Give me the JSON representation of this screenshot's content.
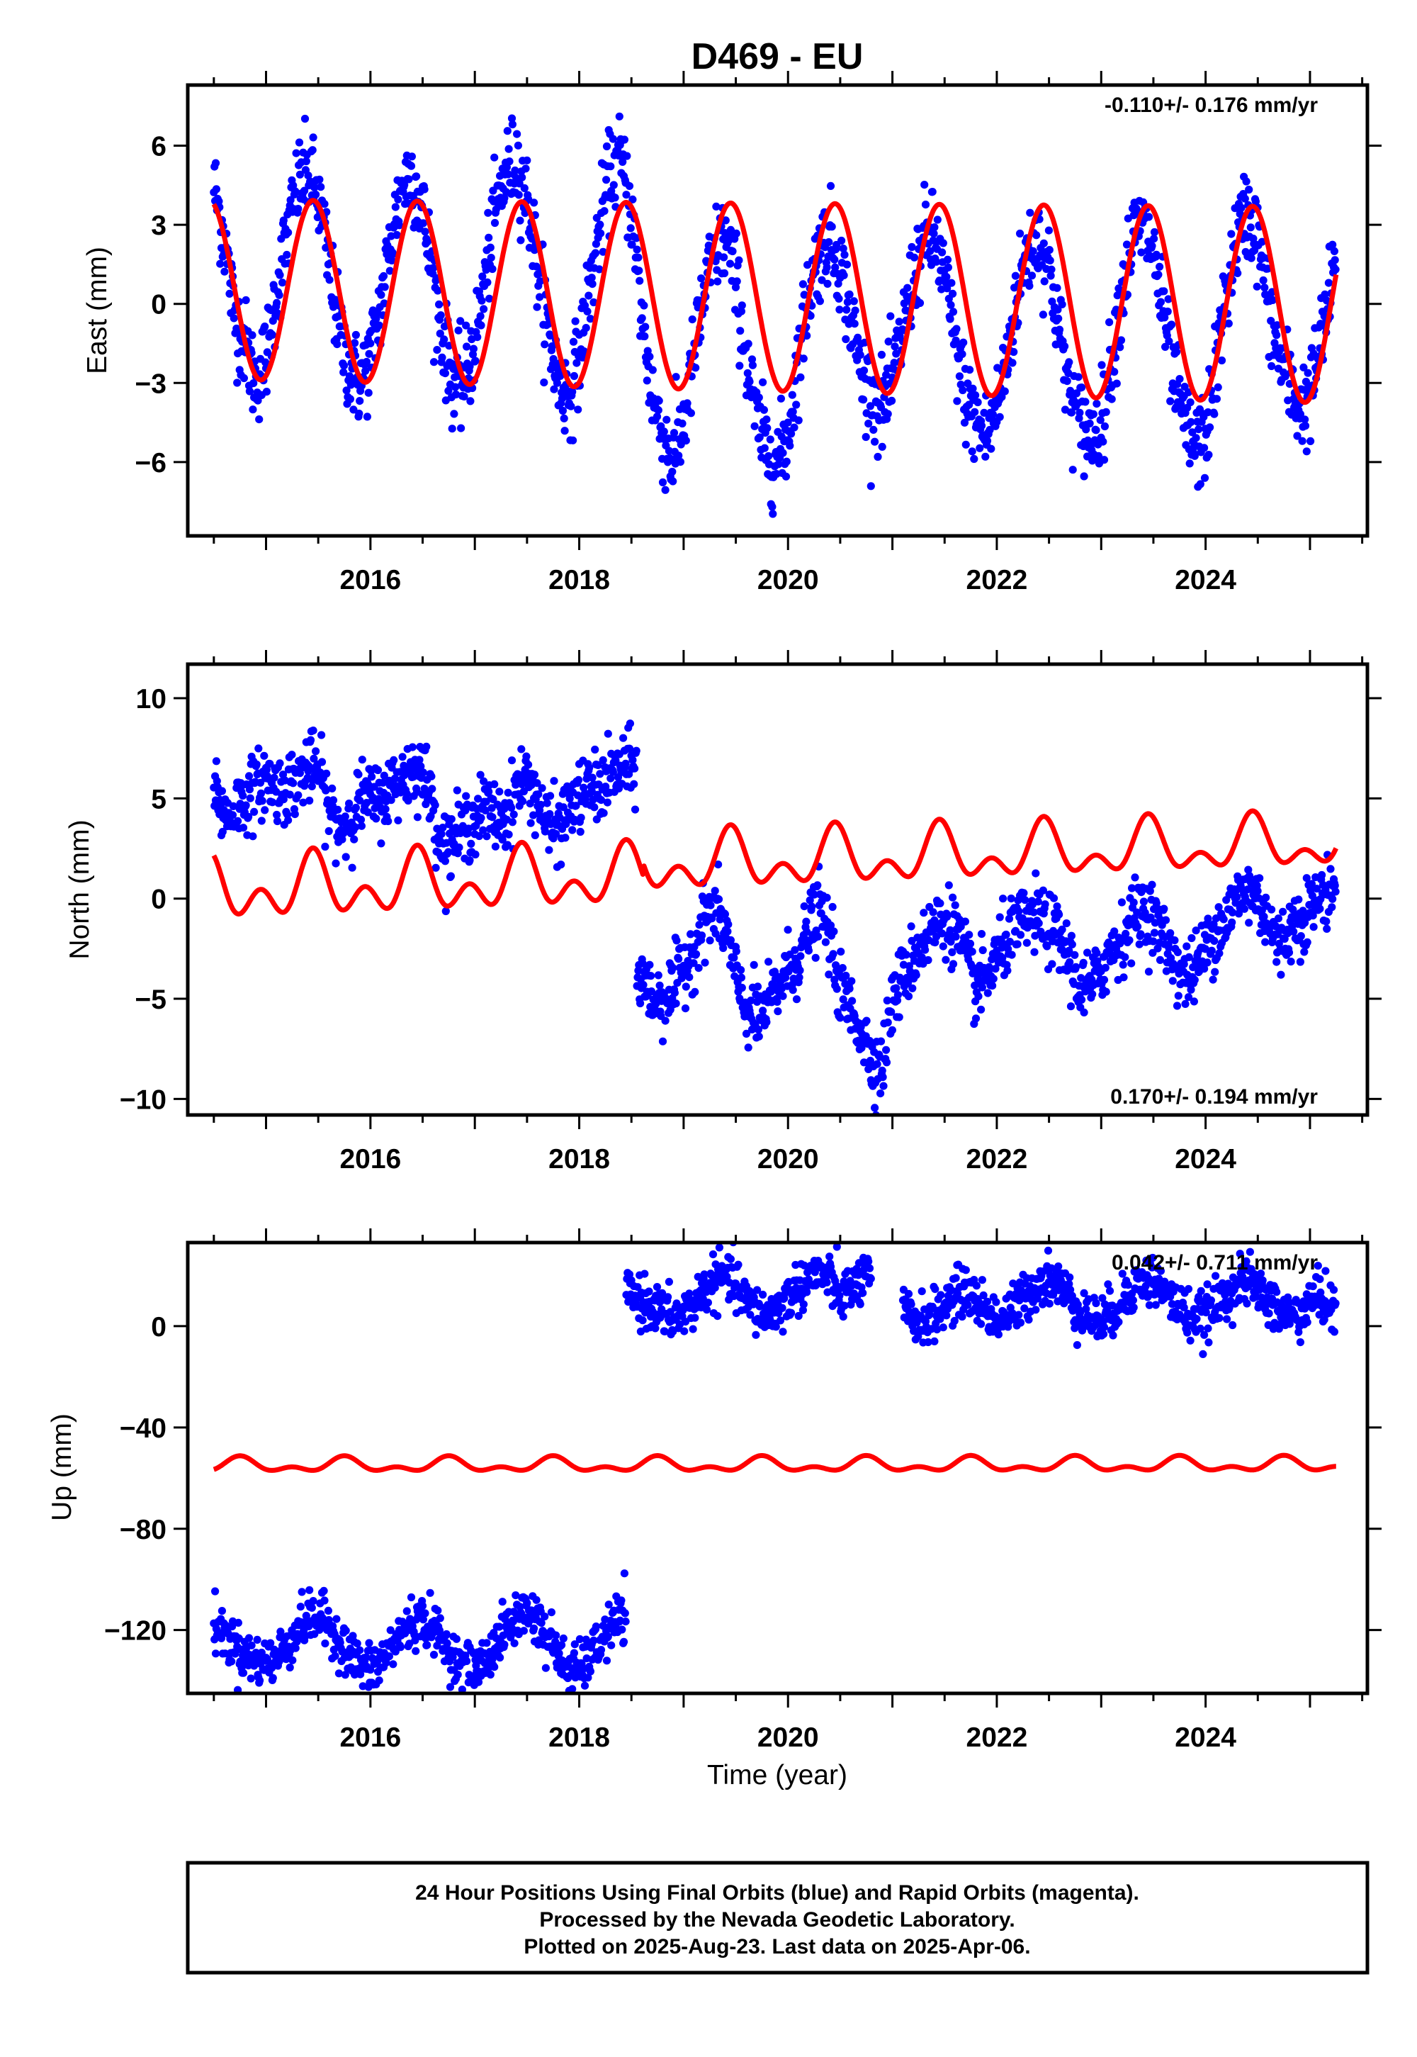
{
  "title": "D469 - EU",
  "footer": {
    "line1": "24 Hour Positions Using Final Orbits (blue) and Rapid Orbits (magenta).",
    "line2": "Processed by the Nevada Geodetic Laboratory.",
    "line3": "Plotted on 2025-Aug-23. Last data on 2025-Apr-06."
  },
  "colors": {
    "data": "#0000ff",
    "fit": "#ff0000"
  },
  "chart_data": [
    {
      "type": "scatter",
      "ylabel": "East (mm)",
      "xlabel": "",
      "rate": "-0.110+/- 0.176 mm/yr",
      "xlim": [
        2014.25,
        2025.55
      ],
      "ylim": [
        -8.8,
        8.3
      ],
      "xticks": [
        2016,
        2018,
        2020,
        2022,
        2024
      ],
      "xtick_labels": [
        "2016",
        "2018",
        "2020",
        "2022",
        "2024"
      ],
      "yticks": [
        -6,
        -3,
        0,
        3,
        6
      ],
      "ytick_labels": [
        "−6",
        "−3",
        "0",
        "3",
        "6"
      ],
      "legend": "none",
      "series": [
        {
          "role": "observations",
          "x": [
            2014.5,
            2014.6,
            2014.7,
            2014.8,
            2014.9,
            2015.0,
            2015.1,
            2015.2,
            2015.3,
            2015.4,
            2015.5,
            2015.6,
            2015.7,
            2015.8,
            2015.9,
            2016.0,
            2016.1,
            2016.2,
            2016.3,
            2016.4,
            2016.5,
            2016.6,
            2016.7,
            2016.8,
            2016.9,
            2017.0,
            2017.1,
            2017.2,
            2017.3,
            2017.4,
            2017.5,
            2017.6,
            2017.7,
            2017.8,
            2017.9,
            2018.0,
            2018.1,
            2018.2,
            2018.3,
            2018.4,
            2018.5,
            2018.6,
            2018.7,
            2018.8,
            2018.9,
            2019.0,
            2019.1,
            2019.2,
            2019.3,
            2019.4,
            2019.5,
            2019.6,
            2019.7,
            2019.8,
            2019.9,
            2020.0,
            2020.1,
            2020.2,
            2020.3,
            2020.4,
            2020.5,
            2020.6,
            2020.7,
            2020.8,
            2020.9,
            2021.0,
            2021.1,
            2021.2,
            2021.3,
            2021.4,
            2021.5,
            2021.6,
            2021.7,
            2021.8,
            2021.9,
            2022.0,
            2022.1,
            2022.2,
            2022.3,
            2022.4,
            2022.5,
            2022.6,
            2022.7,
            2022.8,
            2022.9,
            2023.0,
            2023.1,
            2023.2,
            2023.3,
            2023.4,
            2023.5,
            2023.6,
            2023.7,
            2023.8,
            2023.9,
            2024.0,
            2024.1,
            2024.2,
            2024.3,
            2024.4,
            2024.5,
            2024.6,
            2024.7,
            2024.8,
            2024.9,
            2025.0,
            2025.1,
            2025.2,
            2025.25
          ],
          "y": [
            4.5,
            2.5,
            -0.5,
            -1.5,
            -3.0,
            -2.0,
            0.5,
            2.5,
            4.5,
            5.0,
            4.0,
            1.5,
            -1.0,
            -2.5,
            -3.0,
            -2.0,
            0.0,
            2.5,
            4.5,
            5.0,
            3.5,
            1.0,
            -1.5,
            -3.0,
            -3.0,
            -1.5,
            1.0,
            3.5,
            5.0,
            5.5,
            4.0,
            1.5,
            -1.0,
            -3.0,
            -3.5,
            -2.0,
            0.5,
            3.0,
            5.0,
            5.5,
            3.5,
            -0.5,
            -3.5,
            -5.0,
            -6.0,
            -4.5,
            -2.0,
            0.5,
            2.0,
            2.5,
            1.0,
            -2.0,
            -4.5,
            -5.5,
            -6.0,
            -5.0,
            -2.0,
            0.5,
            2.0,
            2.5,
            1.5,
            -0.5,
            -2.5,
            -3.5,
            -4.0,
            -3.0,
            -1.0,
            1.0,
            2.5,
            2.5,
            1.0,
            -1.5,
            -3.5,
            -4.5,
            -5.0,
            -4.0,
            -2.0,
            0.5,
            2.0,
            2.5,
            1.5,
            -1.0,
            -3.5,
            -4.5,
            -5.0,
            -4.5,
            -2.0,
            0.5,
            2.5,
            3.0,
            2.0,
            -0.5,
            -3.0,
            -4.5,
            -5.5,
            -5.0,
            -2.5,
            0.5,
            2.5,
            3.5,
            2.5,
            0.0,
            -2.0,
            -3.0,
            -4.0,
            -3.5,
            -1.5,
            0.5,
            1.5
          ]
        },
        {
          "role": "model-fit",
          "model": "sinusoid",
          "x_start": 2014.5,
          "x_end": 2025.25,
          "offset": 0.5,
          "trend_per_year": -0.11,
          "amplitude": [
            3.5,
            3.6,
            3.7
          ],
          "amplitude_years": [
            2014.5,
            2019.5,
            2025.25
          ],
          "peak_year_fraction": 0.45,
          "peak_values": [
            4.0,
            3.9,
            3.3
          ],
          "trough_values": [
            -2.8,
            -3.2,
            -3.8
          ]
        }
      ]
    },
    {
      "type": "scatter",
      "ylabel": "North (mm)",
      "xlabel": "",
      "rate": "0.170+/- 0.194 mm/yr",
      "xlim": [
        2014.25,
        2025.55
      ],
      "ylim": [
        -10.8,
        11.7
      ],
      "xticks": [
        2016,
        2018,
        2020,
        2022,
        2024
      ],
      "xtick_labels": [
        "2016",
        "2018",
        "2020",
        "2022",
        "2024"
      ],
      "yticks": [
        -10,
        -5,
        0,
        5,
        10
      ],
      "ytick_labels": [
        "−10",
        "−5",
        "0",
        "5",
        "10"
      ],
      "legend": "none",
      "series": [
        {
          "role": "observations",
          "x": [
            2014.5,
            2014.6,
            2014.7,
            2014.8,
            2014.9,
            2015.0,
            2015.1,
            2015.2,
            2015.3,
            2015.4,
            2015.5,
            2015.6,
            2015.7,
            2015.8,
            2015.9,
            2016.0,
            2016.1,
            2016.2,
            2016.3,
            2016.4,
            2016.5,
            2016.6,
            2016.7,
            2016.8,
            2016.9,
            2017.0,
            2017.1,
            2017.2,
            2017.3,
            2017.4,
            2017.5,
            2017.6,
            2017.7,
            2017.8,
            2017.9,
            2018.0,
            2018.1,
            2018.2,
            2018.3,
            2018.4,
            2018.5,
            2018.6,
            2018.7,
            2018.8,
            2018.9,
            2019.0,
            2019.1,
            2019.2,
            2019.3,
            2019.4,
            2019.5,
            2019.6,
            2019.7,
            2019.8,
            2019.9,
            2020.0,
            2020.1,
            2020.2,
            2020.3,
            2020.4,
            2020.5,
            2020.6,
            2020.7,
            2020.8,
            2020.9,
            2021.0,
            2021.1,
            2021.2,
            2021.3,
            2021.4,
            2021.5,
            2021.6,
            2021.7,
            2021.8,
            2021.9,
            2022.0,
            2022.1,
            2022.2,
            2022.3,
            2022.4,
            2022.5,
            2022.6,
            2022.7,
            2022.8,
            2022.9,
            2023.0,
            2023.1,
            2023.2,
            2023.3,
            2023.4,
            2023.5,
            2023.6,
            2023.7,
            2023.8,
            2023.9,
            2024.0,
            2024.1,
            2024.2,
            2024.3,
            2024.4,
            2024.5,
            2024.6,
            2024.7,
            2024.8,
            2024.9,
            2025.0,
            2025.1,
            2025.2,
            2025.25
          ],
          "y": [
            6.0,
            4.0,
            4.5,
            5.0,
            5.5,
            6.0,
            5.5,
            5.5,
            6.0,
            6.5,
            6.5,
            4.5,
            3.5,
            4.0,
            5.0,
            5.0,
            5.0,
            5.5,
            6.0,
            6.5,
            6.5,
            4.5,
            2.5,
            3.0,
            3.5,
            4.0,
            4.5,
            4.0,
            4.0,
            5.5,
            6.0,
            5.0,
            3.5,
            3.5,
            4.5,
            5.0,
            5.5,
            5.5,
            6.0,
            6.5,
            6.5,
            -4.0,
            -5.0,
            -5.0,
            -4.5,
            -3.5,
            -2.5,
            -1.0,
            -0.5,
            -1.5,
            -4.0,
            -5.5,
            -6.0,
            -5.5,
            -4.5,
            -3.5,
            -3.0,
            -1.5,
            -0.5,
            -2.0,
            -4.5,
            -5.5,
            -6.5,
            -8.0,
            -8.5,
            -5.0,
            -4.0,
            -3.0,
            -2.0,
            -1.5,
            -1.0,
            -1.5,
            -3.0,
            -4.5,
            -4.0,
            -3.0,
            -2.0,
            -1.5,
            -1.0,
            -1.0,
            -1.5,
            -2.0,
            -3.0,
            -4.5,
            -4.5,
            -3.5,
            -2.5,
            -2.0,
            -1.0,
            -0.5,
            -1.0,
            -2.0,
            -3.0,
            -4.0,
            -3.5,
            -2.5,
            -1.5,
            -1.0,
            0.0,
            0.5,
            0.0,
            -1.0,
            -2.5,
            -1.5,
            -1.0,
            -0.5,
            0.0,
            0.5,
            0.5
          ]
        },
        {
          "role": "model-fit",
          "model": "annual-plus-semiannual",
          "x_start": 2014.5,
          "x_end": 2025.25,
          "offset": 0.9,
          "step_year": 2018.62,
          "step_mm": 1.0,
          "trend_per_year": 0.17,
          "annual_amplitude": 1.0,
          "semiannual_amplitude": 1.0,
          "peak_values": [
            2.3,
            2.9,
            3.5,
            3.8
          ],
          "trough_values": [
            -1.7,
            -1.3,
            -0.7,
            0.0
          ]
        }
      ]
    },
    {
      "type": "scatter",
      "ylabel": "Up (mm)",
      "xlabel": "Time (year)",
      "rate": "0.042+/- 0.711 mm/yr",
      "xlim": [
        2014.25,
        2025.55
      ],
      "ylim": [
        -145,
        33
      ],
      "xticks": [
        2016,
        2018,
        2020,
        2022,
        2024
      ],
      "xtick_labels": [
        "2016",
        "2018",
        "2020",
        "2022",
        "2024"
      ],
      "yticks": [
        -120,
        -80,
        -40,
        0
      ],
      "ytick_labels": [
        "−120",
        "−80",
        "−40",
        "0"
      ],
      "legend": "none",
      "series": [
        {
          "role": "observations",
          "x": [
            2014.5,
            2014.6,
            2014.7,
            2014.8,
            2014.9,
            2015.0,
            2015.1,
            2015.2,
            2015.3,
            2015.4,
            2015.5,
            2015.6,
            2015.7,
            2015.8,
            2015.9,
            2016.0,
            2016.1,
            2016.2,
            2016.3,
            2016.4,
            2016.5,
            2016.6,
            2016.7,
            2016.8,
            2016.9,
            2017.0,
            2017.1,
            2017.2,
            2017.3,
            2017.4,
            2017.5,
            2017.6,
            2017.7,
            2017.8,
            2017.9,
            2018.0,
            2018.1,
            2018.2,
            2018.3,
            2018.4,
            2018.5,
            2018.6,
            2018.7,
            2018.8,
            2018.9,
            2019.0,
            2019.1,
            2019.2,
            2019.3,
            2019.4,
            2019.5,
            2019.6,
            2019.7,
            2019.8,
            2019.9,
            2020.0,
            2020.1,
            2020.2,
            2020.3,
            2020.4,
            2020.5,
            2020.6,
            2020.7,
            2020.8,
            2021.1,
            2021.2,
            2021.3,
            2021.4,
            2021.5,
            2021.6,
            2021.7,
            2021.8,
            2021.9,
            2022.0,
            2022.1,
            2022.2,
            2022.3,
            2022.4,
            2022.5,
            2022.6,
            2022.7,
            2022.8,
            2022.9,
            2023.0,
            2023.1,
            2023.2,
            2023.3,
            2023.4,
            2023.5,
            2023.6,
            2023.7,
            2023.8,
            2023.9,
            2024.0,
            2024.1,
            2024.2,
            2024.3,
            2024.4,
            2024.5,
            2024.6,
            2024.7,
            2024.8,
            2024.9,
            2025.0,
            2025.1,
            2025.2,
            2025.25
          ],
          "y": [
            -118,
            -122,
            -126,
            -130,
            -132,
            -133,
            -131,
            -126,
            -120,
            -116,
            -115,
            -118,
            -124,
            -130,
            -134,
            -136,
            -133,
            -127,
            -121,
            -117,
            -116,
            -119,
            -125,
            -131,
            -135,
            -136,
            -132,
            -126,
            -120,
            -115,
            -112,
            -116,
            -123,
            -130,
            -135,
            -136,
            -131,
            -125,
            -119,
            -115,
            12,
            10,
            8,
            5,
            3,
            5,
            9,
            14,
            18,
            20,
            16,
            10,
            6,
            4,
            7,
            11,
            15,
            19,
            21,
            18,
            12,
            14,
            18,
            20,
            5,
            3,
            2,
            4,
            8,
            12,
            14,
            10,
            6,
            3,
            4,
            8,
            13,
            17,
            19,
            16,
            11,
            6,
            3,
            2,
            5,
            10,
            15,
            18,
            18,
            14,
            9,
            5,
            3,
            4,
            8,
            13,
            16,
            18,
            15,
            10,
            6,
            4,
            5,
            9,
            12,
            8,
            4
          ]
        },
        {
          "role": "model-fit",
          "model": "annual-plus-semiannual",
          "x_start": 2014.5,
          "x_end": 2025.25,
          "offset": -55,
          "trend_per_year": 0.042,
          "annual_amplitude": 1.8,
          "semiannual_amplitude": 1.5,
          "peak_values": [
            -51
          ],
          "trough_values": [
            -58
          ]
        }
      ]
    }
  ]
}
